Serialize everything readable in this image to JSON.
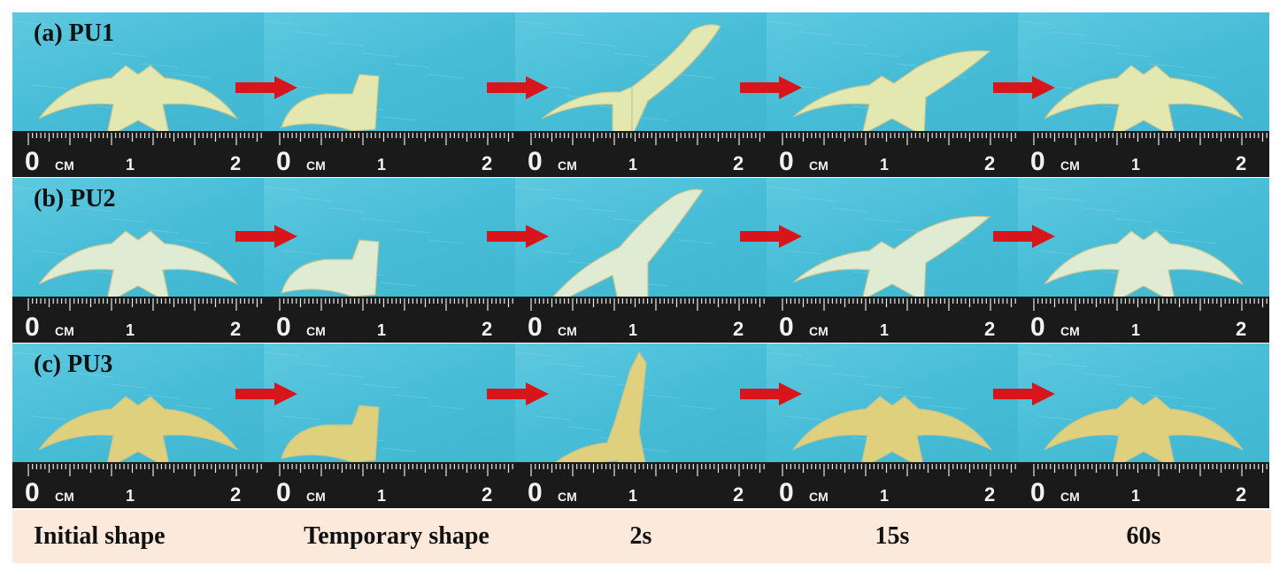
{
  "rows": [
    {
      "label": "(a) PU1",
      "tint": "#ecebb0"
    },
    {
      "label": "(b) PU2",
      "tint": "#e8eed2"
    },
    {
      "label": "(c) PU3",
      "tint": "#e8d27a"
    }
  ],
  "columns": [
    "Initial shape",
    "Temporary shape",
    "2s",
    "15s",
    "60s"
  ],
  "ruler": {
    "unit": "CM",
    "ticks": [
      "0",
      "1",
      "2"
    ]
  },
  "colors": {
    "background": "#46bcd7",
    "arrow": "#d8151b",
    "ruler": "#1a1a1a",
    "caption_band": "#fbe9dc"
  }
}
